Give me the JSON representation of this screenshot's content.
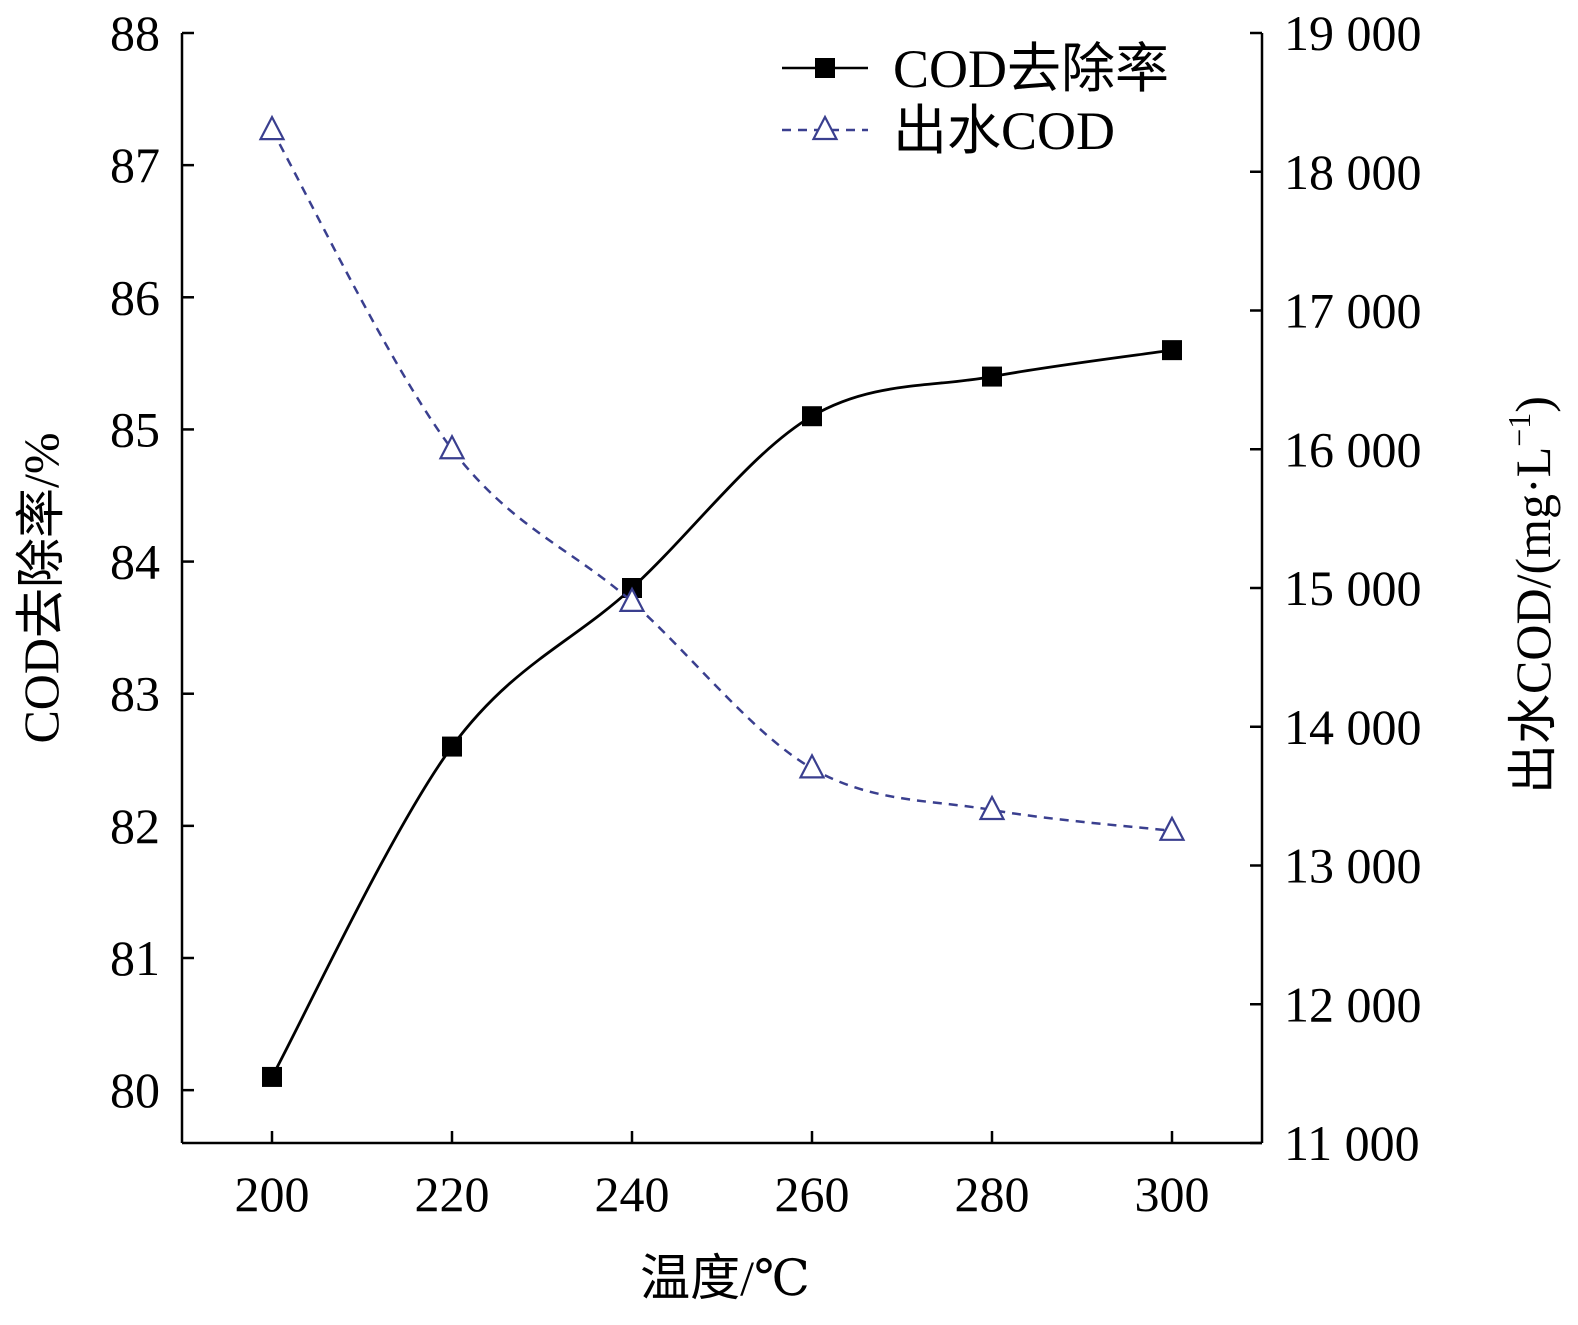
{
  "chart_data": {
    "type": "line",
    "x": [
      200,
      220,
      240,
      260,
      280,
      300
    ],
    "xlabel": "温度/℃",
    "xticks": [
      "200",
      "220",
      "240",
      "260",
      "280",
      "300"
    ],
    "xlim": [
      190,
      310
    ],
    "ylabel_left": "COD去除率/%",
    "yticks_left": [
      "80",
      "81",
      "82",
      "83",
      "84",
      "85",
      "86",
      "87",
      "88"
    ],
    "ylim_left": [
      79.6,
      88
    ],
    "ylabel_right": "出水COD/(mg·L",
    "ylabel_right_sup": "−1",
    "ylabel_right_close": ")",
    "yticks_right": [
      "11 000",
      "12 000",
      "13 000",
      "14 000",
      "15 000",
      "16 000",
      "17 000",
      "18 000",
      "19 000"
    ],
    "ylim_right": [
      11000,
      19000
    ],
    "legend_position": "top-right",
    "series": [
      {
        "name": "COD去除率",
        "axis": "left",
        "values": [
          80.1,
          82.6,
          83.8,
          85.1,
          85.4,
          85.6
        ],
        "color": "#000000",
        "marker": "square",
        "line": "solid"
      },
      {
        "name": "出水COD",
        "axis": "right",
        "values": [
          18300,
          16000,
          14900,
          13700,
          13400,
          13250
        ],
        "color": "#3a3f8f",
        "marker": "triangle-open",
        "line": "dashed"
      }
    ]
  }
}
